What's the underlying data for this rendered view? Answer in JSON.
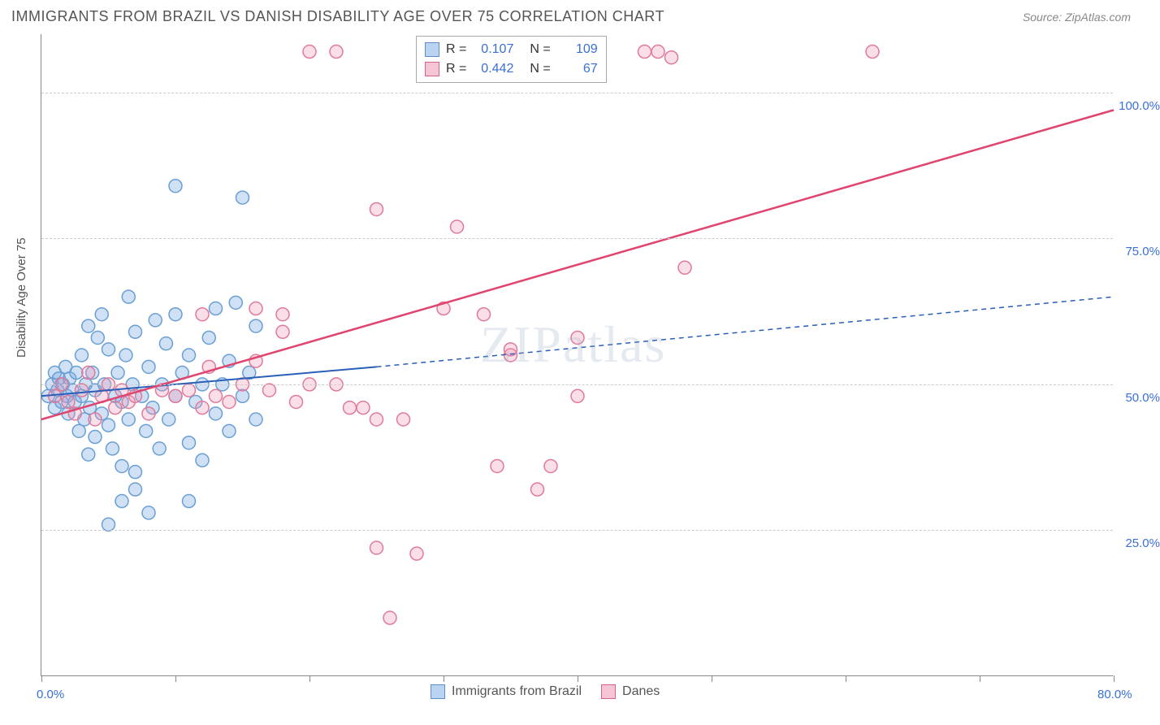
{
  "title": "IMMIGRANTS FROM BRAZIL VS DANISH DISABILITY AGE OVER 75 CORRELATION CHART",
  "source": "Source: ZipAtlas.com",
  "watermark": "ZIPatlas",
  "ylabel": "Disability Age Over 75",
  "chart": {
    "type": "scatter",
    "xlim": [
      0,
      80
    ],
    "ylim": [
      0,
      110
    ],
    "xticks": [
      0,
      10,
      20,
      30,
      40,
      50,
      60,
      70,
      80
    ],
    "xlabels": {
      "0": "0.0%",
      "80": "80.0%"
    },
    "yticks": [
      25,
      50,
      75,
      100
    ],
    "ylabels": {
      "25": "25.0%",
      "50": "50.0%",
      "75": "75.0%",
      "100": "100.0%"
    },
    "grid_color": "#cccccc",
    "axis_color": "#888888",
    "label_color": "#3a6fd8",
    "background": "#ffffff",
    "marker_radius": 8,
    "marker_stroke_width": 1.5,
    "series": [
      {
        "name": "Immigrants from Brazil",
        "color_fill": "rgba(120,170,230,0.35)",
        "color_stroke": "#6a9fd4",
        "swatch_fill": "#b9d3f0",
        "swatch_stroke": "#5a8fc8",
        "R": "0.107",
        "N": "109",
        "trend": {
          "x1": 0,
          "y1": 48,
          "x2": 25,
          "y2": 53,
          "extend_x2": 80,
          "extend_y2": 65,
          "color": "#2a5fb8",
          "width": 2,
          "dash_ext": "6,5"
        },
        "points": [
          [
            0.5,
            48
          ],
          [
            0.8,
            50
          ],
          [
            1,
            52
          ],
          [
            1,
            46
          ],
          [
            1.2,
            49
          ],
          [
            1.3,
            51
          ],
          [
            1.5,
            47
          ],
          [
            1.6,
            50
          ],
          [
            1.8,
            53
          ],
          [
            1.9,
            48
          ],
          [
            2,
            45
          ],
          [
            2.1,
            51
          ],
          [
            2.3,
            49
          ],
          [
            2.5,
            47
          ],
          [
            2.6,
            52
          ],
          [
            2.8,
            42
          ],
          [
            3,
            48
          ],
          [
            3,
            55
          ],
          [
            3.2,
            44
          ],
          [
            3.3,
            50
          ],
          [
            3.5,
            38
          ],
          [
            3.6,
            46
          ],
          [
            3.8,
            52
          ],
          [
            4,
            41
          ],
          [
            4,
            49
          ],
          [
            4.2,
            58
          ],
          [
            4.5,
            45
          ],
          [
            4.7,
            50
          ],
          [
            5,
            43
          ],
          [
            5,
            56
          ],
          [
            5.3,
            39
          ],
          [
            5.5,
            48
          ],
          [
            5.7,
            52
          ],
          [
            6,
            36
          ],
          [
            6,
            47
          ],
          [
            6.3,
            55
          ],
          [
            6.5,
            44
          ],
          [
            6.8,
            50
          ],
          [
            7,
            35
          ],
          [
            7,
            59
          ],
          [
            7.5,
            48
          ],
          [
            7.8,
            42
          ],
          [
            8,
            53
          ],
          [
            8.3,
            46
          ],
          [
            8.5,
            61
          ],
          [
            8.8,
            39
          ],
          [
            9,
            50
          ],
          [
            9.3,
            57
          ],
          [
            9.5,
            44
          ],
          [
            10,
            48
          ],
          [
            10,
            62
          ],
          [
            10,
            84
          ],
          [
            10.5,
            52
          ],
          [
            11,
            40
          ],
          [
            11,
            55
          ],
          [
            11.5,
            47
          ],
          [
            12,
            50
          ],
          [
            12,
            37
          ],
          [
            12.5,
            58
          ],
          [
            13,
            45
          ],
          [
            13,
            63
          ],
          [
            13.5,
            50
          ],
          [
            14,
            42
          ],
          [
            14,
            54
          ],
          [
            14.5,
            64
          ],
          [
            15,
            48
          ],
          [
            15,
            82
          ],
          [
            15.5,
            52
          ],
          [
            16,
            60
          ],
          [
            16,
            44
          ],
          [
            5,
            26
          ],
          [
            6,
            30
          ],
          [
            7,
            32
          ],
          [
            8,
            28
          ],
          [
            11,
            30
          ],
          [
            3.5,
            60
          ],
          [
            4.5,
            62
          ],
          [
            6.5,
            65
          ]
        ]
      },
      {
        "name": "Danes",
        "color_fill": "rgba(240,150,180,0.30)",
        "color_stroke": "#e07a9a",
        "swatch_fill": "#f5c5d5",
        "swatch_stroke": "#d8628a",
        "R": "0.442",
        "N": "67",
        "trend": {
          "x1": 0,
          "y1": 44,
          "x2": 80,
          "y2": 97,
          "color": "#e0456f",
          "width": 2.5
        },
        "points": [
          [
            1,
            48
          ],
          [
            1.5,
            50
          ],
          [
            2,
            47
          ],
          [
            2.5,
            45
          ],
          [
            3,
            49
          ],
          [
            3.5,
            52
          ],
          [
            4,
            44
          ],
          [
            4.5,
            48
          ],
          [
            5,
            50
          ],
          [
            5.5,
            46
          ],
          [
            6,
            49
          ],
          [
            6.5,
            47
          ],
          [
            7,
            48
          ],
          [
            8,
            45
          ],
          [
            9,
            49
          ],
          [
            10,
            48
          ],
          [
            11,
            49
          ],
          [
            12,
            46
          ],
          [
            12.5,
            53
          ],
          [
            13,
            48
          ],
          [
            14,
            47
          ],
          [
            15,
            50
          ],
          [
            16,
            54
          ],
          [
            17,
            49
          ],
          [
            18,
            59
          ],
          [
            18,
            62
          ],
          [
            19,
            47
          ],
          [
            20,
            50
          ],
          [
            20,
            107
          ],
          [
            22,
            107
          ],
          [
            23,
            46
          ],
          [
            24,
            46
          ],
          [
            25,
            44
          ],
          [
            25,
            22
          ],
          [
            25,
            80
          ],
          [
            26,
            10
          ],
          [
            27,
            44
          ],
          [
            28,
            21
          ],
          [
            30,
            63
          ],
          [
            31,
            77
          ],
          [
            33,
            62
          ],
          [
            34,
            36
          ],
          [
            35,
            55
          ],
          [
            35,
            56
          ],
          [
            37,
            32
          ],
          [
            38,
            36
          ],
          [
            40,
            58
          ],
          [
            45,
            107
          ],
          [
            46,
            107
          ],
          [
            47,
            106
          ],
          [
            48,
            70
          ],
          [
            62,
            107
          ],
          [
            40,
            48
          ],
          [
            22,
            50
          ],
          [
            12,
            62
          ],
          [
            16,
            63
          ]
        ]
      }
    ]
  },
  "legend_bottom": [
    {
      "label": "Immigrants from Brazil",
      "fill": "#b9d3f0",
      "stroke": "#5a8fc8"
    },
    {
      "label": "Danes",
      "fill": "#f5c5d5",
      "stroke": "#d8628a"
    }
  ]
}
